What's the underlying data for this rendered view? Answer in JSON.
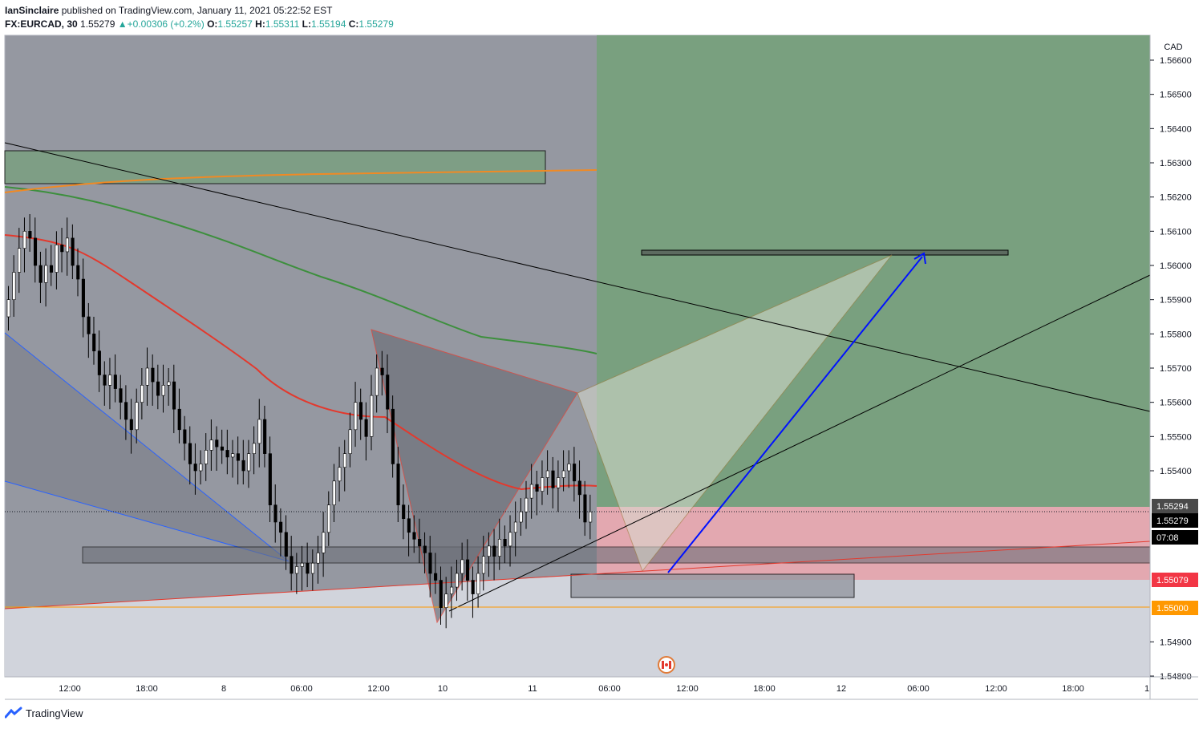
{
  "header": {
    "author": "IanSinclaire",
    "published": " published on TradingView.com, January 11, 2021 05:22:52 EST",
    "symbol": "FX:EURCAD, 30",
    "price": "1.55279",
    "change": "+0.00306 (+0.2%)",
    "o_label": "O:",
    "o": "1.55257",
    "h_label": "H:",
    "h": "1.55311",
    "l_label": "L:",
    "l": "1.55194",
    "c_label": "C:",
    "c": "1.55279"
  },
  "footer": {
    "brand": "TradingView"
  },
  "colors": {
    "up": "#ffffff",
    "down": "#000000",
    "bg_past": "#9598a1",
    "bg_future": "#d1d4dc",
    "profit": "#79a07f",
    "loss": "#e6a0a8",
    "ema_red": "#e3392d",
    "ema_green": "#3d8f3d",
    "ema_orange": "#f08a24"
  },
  "chart_data": {
    "type": "candlestick",
    "currency": "CAD",
    "ylim": [
      1.5478,
      1.567
    ],
    "y_ticks": [
      "1.56600",
      "1.56500",
      "1.56400",
      "1.56300",
      "1.56200",
      "1.56100",
      "1.56000",
      "1.55900",
      "1.55800",
      "1.55700",
      "1.55600",
      "1.55500",
      "1.55400",
      "1.54900",
      "1.54800"
    ],
    "x_ticks": [
      "12:00",
      "18:00",
      "8",
      "06:00",
      "12:00",
      "10",
      "11",
      "06:00",
      "12:00",
      "18:00",
      "12",
      "06:00",
      "12:00",
      "18:00",
      "1"
    ],
    "price_labels": [
      {
        "value": "1.55294",
        "color": "#4a4a4a"
      },
      {
        "value": "1.55279",
        "color": "#000000"
      },
      {
        "value": "07:08",
        "color": "#000000"
      },
      {
        "value": "1.55079",
        "color": "#f23645"
      },
      {
        "value": "1.55000",
        "color": "#ff9800"
      }
    ],
    "last_price": 1.55279,
    "long_position": {
      "entry": 1.55294,
      "target": 1.567,
      "stop": 1.55079
    },
    "support_level": 1.55,
    "target_level": 1.56035,
    "candles_close": [
      1.559,
      1.5598,
      1.5605,
      1.561,
      1.5608,
      1.56,
      1.5595,
      1.56,
      1.5598,
      1.5606,
      1.5604,
      1.5608,
      1.56,
      1.5596,
      1.5585,
      1.558,
      1.5575,
      1.5568,
      1.5565,
      1.5568,
      1.5564,
      1.556,
      1.5555,
      1.5552,
      1.556,
      1.5565,
      1.557,
      1.5566,
      1.5562,
      1.5565,
      1.5566,
      1.5558,
      1.5552,
      1.5548,
      1.5542,
      1.554,
      1.5542,
      1.5546,
      1.5549,
      1.5547,
      1.5546,
      1.5544,
      1.5545,
      1.5543,
      1.554,
      1.5545,
      1.5548,
      1.5555,
      1.5545,
      1.553,
      1.5525,
      1.5522,
      1.5515,
      1.551,
      1.5512,
      1.5513,
      1.551,
      1.5513,
      1.5516,
      1.5522,
      1.553,
      1.5537,
      1.5541,
      1.5545,
      1.5552,
      1.556,
      1.5555,
      1.555,
      1.5562,
      1.557,
      1.5568,
      1.5558,
      1.5542,
      1.553,
      1.5526,
      1.5522,
      1.552,
      1.5518,
      1.5516,
      1.551,
      1.5508,
      1.55,
      1.5504,
      1.5506,
      1.551,
      1.5514,
      1.5508,
      1.5504,
      1.551,
      1.5515,
      1.5518,
      1.5515,
      1.552,
      1.5518,
      1.5522,
      1.5525,
      1.5528,
      1.5532,
      1.5536,
      1.5534,
      1.5538,
      1.554,
      1.5535,
      1.5538,
      1.554,
      1.5542,
      1.5537,
      1.5533,
      1.5525,
      1.5528
    ]
  }
}
